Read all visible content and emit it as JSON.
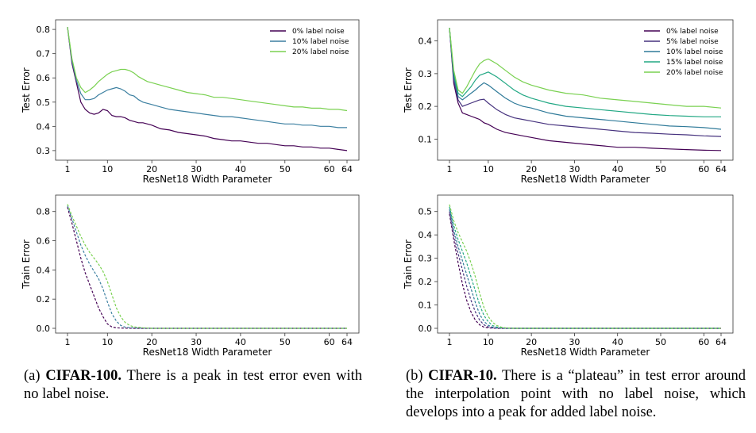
{
  "chart_data": [
    {
      "id": "a_test",
      "type": "line",
      "xlabel": "ResNet18 Width Parameter",
      "ylabel": "Test Error",
      "xlim": [
        1,
        64
      ],
      "ylim": [
        0.28,
        0.82
      ],
      "xticks": [
        1,
        10,
        20,
        30,
        40,
        50,
        60,
        64
      ],
      "yticks": [
        0.3,
        0.4,
        0.5,
        0.6,
        0.7,
        0.8
      ],
      "ytick_labels": [
        "0.3",
        "0.4",
        "0.5",
        "0.6",
        "0.7",
        "0.8"
      ],
      "legend": "top-right",
      "series": [
        {
          "name": "0% label noise",
          "color": "#440154",
          "dash": false,
          "x": [
            1,
            2,
            3,
            4,
            5,
            6,
            7,
            8,
            9,
            10,
            11,
            12,
            13,
            14,
            15,
            16,
            17,
            18,
            19,
            20,
            22,
            24,
            26,
            28,
            30,
            32,
            34,
            36,
            38,
            40,
            42,
            44,
            46,
            48,
            50,
            52,
            54,
            56,
            58,
            60,
            62,
            64
          ],
          "y": [
            0.81,
            0.66,
            0.58,
            0.5,
            0.47,
            0.455,
            0.45,
            0.455,
            0.47,
            0.465,
            0.445,
            0.44,
            0.44,
            0.435,
            0.425,
            0.42,
            0.415,
            0.415,
            0.41,
            0.405,
            0.39,
            0.385,
            0.375,
            0.37,
            0.365,
            0.36,
            0.35,
            0.345,
            0.34,
            0.34,
            0.335,
            0.33,
            0.33,
            0.325,
            0.32,
            0.32,
            0.315,
            0.315,
            0.31,
            0.31,
            0.305,
            0.3
          ]
        },
        {
          "name": "10% label noise",
          "color": "#3b7fa0",
          "dash": false,
          "x": [
            1,
            2,
            3,
            4,
            5,
            6,
            7,
            8,
            9,
            10,
            11,
            12,
            13,
            14,
            15,
            16,
            17,
            18,
            19,
            20,
            22,
            24,
            26,
            28,
            30,
            32,
            34,
            36,
            38,
            40,
            42,
            44,
            46,
            48,
            50,
            52,
            54,
            56,
            58,
            60,
            62,
            64
          ],
          "y": [
            0.81,
            0.67,
            0.59,
            0.535,
            0.51,
            0.51,
            0.515,
            0.53,
            0.54,
            0.55,
            0.555,
            0.56,
            0.555,
            0.545,
            0.53,
            0.525,
            0.51,
            0.5,
            0.495,
            0.49,
            0.48,
            0.47,
            0.465,
            0.46,
            0.455,
            0.45,
            0.445,
            0.44,
            0.44,
            0.435,
            0.43,
            0.425,
            0.42,
            0.415,
            0.41,
            0.41,
            0.405,
            0.405,
            0.4,
            0.4,
            0.395,
            0.395
          ]
        },
        {
          "name": "20% label noise",
          "color": "#7ad151",
          "dash": false,
          "x": [
            1,
            2,
            3,
            4,
            5,
            6,
            7,
            8,
            9,
            10,
            11,
            12,
            13,
            14,
            15,
            16,
            17,
            18,
            19,
            20,
            22,
            24,
            26,
            28,
            30,
            32,
            34,
            36,
            38,
            40,
            42,
            44,
            46,
            48,
            50,
            52,
            54,
            56,
            58,
            60,
            62,
            64
          ],
          "y": [
            0.81,
            0.68,
            0.6,
            0.56,
            0.54,
            0.55,
            0.565,
            0.585,
            0.6,
            0.615,
            0.625,
            0.63,
            0.635,
            0.635,
            0.63,
            0.62,
            0.605,
            0.595,
            0.585,
            0.58,
            0.57,
            0.56,
            0.55,
            0.54,
            0.535,
            0.53,
            0.52,
            0.52,
            0.515,
            0.51,
            0.505,
            0.5,
            0.495,
            0.49,
            0.485,
            0.48,
            0.48,
            0.475,
            0.475,
            0.47,
            0.47,
            0.465
          ]
        }
      ]
    },
    {
      "id": "b_test",
      "type": "line",
      "xlabel": "ResNet18 Width Parameter",
      "ylabel": "Test Error",
      "xlim": [
        1,
        64
      ],
      "ylim": [
        0.05,
        0.45
      ],
      "xticks": [
        1,
        10,
        20,
        30,
        40,
        50,
        60,
        64
      ],
      "yticks": [
        0.1,
        0.2,
        0.3,
        0.4
      ],
      "ytick_labels": [
        "0.1",
        "0.2",
        "0.3",
        "0.4"
      ],
      "legend": "top-right",
      "series": [
        {
          "name": "0% label noise",
          "color": "#440154",
          "dash": false,
          "x": [
            1,
            2,
            3,
            4,
            5,
            6,
            7,
            8,
            9,
            10,
            12,
            14,
            16,
            18,
            20,
            24,
            28,
            32,
            36,
            40,
            44,
            48,
            52,
            56,
            60,
            64
          ],
          "y": [
            0.44,
            0.27,
            0.21,
            0.18,
            0.175,
            0.17,
            0.165,
            0.16,
            0.15,
            0.145,
            0.13,
            0.12,
            0.115,
            0.11,
            0.105,
            0.095,
            0.09,
            0.085,
            0.08,
            0.075,
            0.075,
            0.072,
            0.07,
            0.068,
            0.066,
            0.065
          ]
        },
        {
          "name": "5% label noise",
          "color": "#46327e",
          "dash": false,
          "x": [
            1,
            2,
            3,
            4,
            5,
            6,
            7,
            8,
            9,
            10,
            12,
            14,
            16,
            18,
            20,
            24,
            28,
            32,
            36,
            40,
            44,
            48,
            52,
            56,
            60,
            64
          ],
          "y": [
            0.44,
            0.28,
            0.22,
            0.2,
            0.205,
            0.21,
            0.215,
            0.22,
            0.222,
            0.21,
            0.19,
            0.175,
            0.165,
            0.16,
            0.155,
            0.145,
            0.14,
            0.135,
            0.13,
            0.125,
            0.12,
            0.118,
            0.115,
            0.113,
            0.11,
            0.108
          ]
        },
        {
          "name": "10% label noise",
          "color": "#2f7a99",
          "dash": false,
          "x": [
            1,
            2,
            3,
            4,
            5,
            6,
            7,
            8,
            9,
            10,
            12,
            14,
            16,
            18,
            20,
            24,
            28,
            32,
            36,
            40,
            44,
            48,
            52,
            56,
            60,
            64
          ],
          "y": [
            0.44,
            0.29,
            0.23,
            0.22,
            0.23,
            0.24,
            0.25,
            0.262,
            0.272,
            0.265,
            0.245,
            0.225,
            0.21,
            0.2,
            0.195,
            0.18,
            0.17,
            0.165,
            0.16,
            0.155,
            0.15,
            0.145,
            0.14,
            0.138,
            0.135,
            0.13
          ]
        },
        {
          "name": "15% label noise",
          "color": "#22a884",
          "dash": false,
          "x": [
            1,
            2,
            3,
            4,
            5,
            6,
            7,
            8,
            9,
            10,
            12,
            14,
            16,
            18,
            20,
            24,
            28,
            32,
            36,
            40,
            44,
            48,
            52,
            56,
            60,
            64
          ],
          "y": [
            0.44,
            0.3,
            0.24,
            0.23,
            0.245,
            0.26,
            0.28,
            0.295,
            0.3,
            0.305,
            0.29,
            0.27,
            0.25,
            0.235,
            0.225,
            0.21,
            0.2,
            0.195,
            0.19,
            0.185,
            0.18,
            0.175,
            0.172,
            0.17,
            0.168,
            0.168
          ]
        },
        {
          "name": "20% label noise",
          "color": "#7ad151",
          "dash": false,
          "x": [
            1,
            2,
            3,
            4,
            5,
            6,
            7,
            8,
            9,
            10,
            12,
            14,
            16,
            18,
            20,
            24,
            28,
            32,
            36,
            40,
            44,
            48,
            52,
            56,
            60,
            64
          ],
          "y": [
            0.44,
            0.31,
            0.25,
            0.24,
            0.26,
            0.285,
            0.31,
            0.33,
            0.34,
            0.345,
            0.33,
            0.31,
            0.29,
            0.275,
            0.265,
            0.25,
            0.24,
            0.235,
            0.225,
            0.22,
            0.215,
            0.21,
            0.205,
            0.2,
            0.2,
            0.195
          ]
        }
      ]
    },
    {
      "id": "a_train",
      "type": "line",
      "xlabel": "ResNet18 Width Parameter",
      "ylabel": "Train Error",
      "xlim": [
        1,
        64
      ],
      "ylim": [
        0,
        0.88
      ],
      "xticks": [
        1,
        10,
        20,
        30,
        40,
        50,
        60,
        64
      ],
      "yticks": [
        0.0,
        0.2,
        0.4,
        0.6,
        0.8
      ],
      "ytick_labels": [
        "0.0",
        "0.2",
        "0.4",
        "0.6",
        "0.8"
      ],
      "legend": "none",
      "series": [
        {
          "name": "0% label noise",
          "color": "#440154",
          "dash": true,
          "x": [
            1,
            2,
            3,
            4,
            5,
            6,
            7,
            8,
            9,
            10,
            11,
            12,
            14,
            16,
            20,
            30,
            40,
            50,
            64
          ],
          "y": [
            0.83,
            0.72,
            0.6,
            0.48,
            0.38,
            0.3,
            0.22,
            0.14,
            0.08,
            0.03,
            0.01,
            0.003,
            0.001,
            0,
            0,
            0,
            0,
            0,
            0
          ]
        },
        {
          "name": "10% label noise",
          "color": "#3b7fa0",
          "dash": true,
          "x": [
            1,
            2,
            3,
            4,
            5,
            6,
            7,
            8,
            9,
            10,
            11,
            12,
            13,
            14,
            16,
            20,
            30,
            40,
            50,
            64
          ],
          "y": [
            0.84,
            0.75,
            0.66,
            0.57,
            0.5,
            0.44,
            0.39,
            0.34,
            0.27,
            0.18,
            0.1,
            0.05,
            0.02,
            0.008,
            0.002,
            0,
            0,
            0,
            0,
            0
          ]
        },
        {
          "name": "20% label noise",
          "color": "#7ad151",
          "dash": true,
          "x": [
            1,
            2,
            3,
            4,
            5,
            6,
            7,
            8,
            9,
            10,
            11,
            12,
            13,
            14,
            15,
            16,
            18,
            20,
            30,
            40,
            50,
            64
          ],
          "y": [
            0.85,
            0.77,
            0.7,
            0.63,
            0.57,
            0.52,
            0.48,
            0.44,
            0.39,
            0.32,
            0.23,
            0.14,
            0.08,
            0.04,
            0.02,
            0.01,
            0.004,
            0,
            0,
            0,
            0,
            0
          ]
        }
      ]
    },
    {
      "id": "b_train",
      "type": "line",
      "xlabel": "ResNet18 Width Parameter",
      "ylabel": "Train Error",
      "xlim": [
        1,
        64
      ],
      "ylim": [
        0,
        0.55
      ],
      "xticks": [
        1,
        10,
        20,
        30,
        40,
        50,
        60,
        64
      ],
      "yticks": [
        0.0,
        0.1,
        0.2,
        0.3,
        0.4,
        0.5
      ],
      "ytick_labels": [
        "0.0",
        "0.1",
        "0.2",
        "0.3",
        "0.4",
        "0.5"
      ],
      "legend": "none",
      "series": [
        {
          "name": "0% label noise",
          "color": "#440154",
          "dash": true,
          "x": [
            1,
            2,
            3,
            4,
            5,
            6,
            7,
            8,
            9,
            10,
            12,
            14,
            20,
            30,
            40,
            50,
            64
          ],
          "y": [
            0.49,
            0.38,
            0.28,
            0.19,
            0.12,
            0.07,
            0.035,
            0.015,
            0.005,
            0.002,
            0,
            0,
            0,
            0,
            0,
            0,
            0
          ]
        },
        {
          "name": "5% label noise",
          "color": "#46327e",
          "dash": true,
          "x": [
            1,
            2,
            3,
            4,
            5,
            6,
            7,
            8,
            9,
            10,
            11,
            12,
            14,
            20,
            30,
            40,
            50,
            64
          ],
          "y": [
            0.5,
            0.4,
            0.32,
            0.25,
            0.18,
            0.12,
            0.07,
            0.035,
            0.015,
            0.006,
            0.002,
            0.001,
            0,
            0,
            0,
            0,
            0,
            0
          ]
        },
        {
          "name": "10% label noise",
          "color": "#2f7a99",
          "dash": true,
          "x": [
            1,
            2,
            3,
            4,
            5,
            6,
            7,
            8,
            9,
            10,
            11,
            12,
            14,
            16,
            20,
            30,
            40,
            50,
            64
          ],
          "y": [
            0.51,
            0.42,
            0.35,
            0.29,
            0.23,
            0.17,
            0.11,
            0.06,
            0.03,
            0.013,
            0.005,
            0.002,
            0.001,
            0,
            0,
            0,
            0,
            0,
            0
          ]
        },
        {
          "name": "15% label noise",
          "color": "#22a884",
          "dash": true,
          "x": [
            1,
            2,
            3,
            4,
            5,
            6,
            7,
            8,
            9,
            10,
            11,
            12,
            13,
            14,
            16,
            20,
            30,
            40,
            50,
            64
          ],
          "y": [
            0.52,
            0.44,
            0.38,
            0.33,
            0.28,
            0.22,
            0.16,
            0.1,
            0.055,
            0.028,
            0.012,
            0.005,
            0.002,
            0.001,
            0,
            0,
            0,
            0,
            0,
            0
          ]
        },
        {
          "name": "20% label noise",
          "color": "#7ad151",
          "dash": true,
          "x": [
            1,
            2,
            3,
            4,
            5,
            6,
            7,
            8,
            9,
            10,
            11,
            12,
            13,
            14,
            15,
            16,
            18,
            20,
            30,
            40,
            50,
            64
          ],
          "y": [
            0.53,
            0.46,
            0.41,
            0.37,
            0.33,
            0.28,
            0.22,
            0.15,
            0.09,
            0.05,
            0.025,
            0.012,
            0.005,
            0.002,
            0.001,
            0,
            0,
            0,
            0,
            0,
            0,
            0
          ]
        }
      ]
    }
  ],
  "captions": {
    "a": {
      "label": "(a)",
      "bold": "CIFAR-100.",
      "text": "There is a peak in test error even with no label noise."
    },
    "b": {
      "label": "(b)",
      "bold": "CIFAR-10.",
      "text": "There is a “plateau” in test error around the interpolation point with no label noise, which develops into a peak for added label noise."
    }
  }
}
